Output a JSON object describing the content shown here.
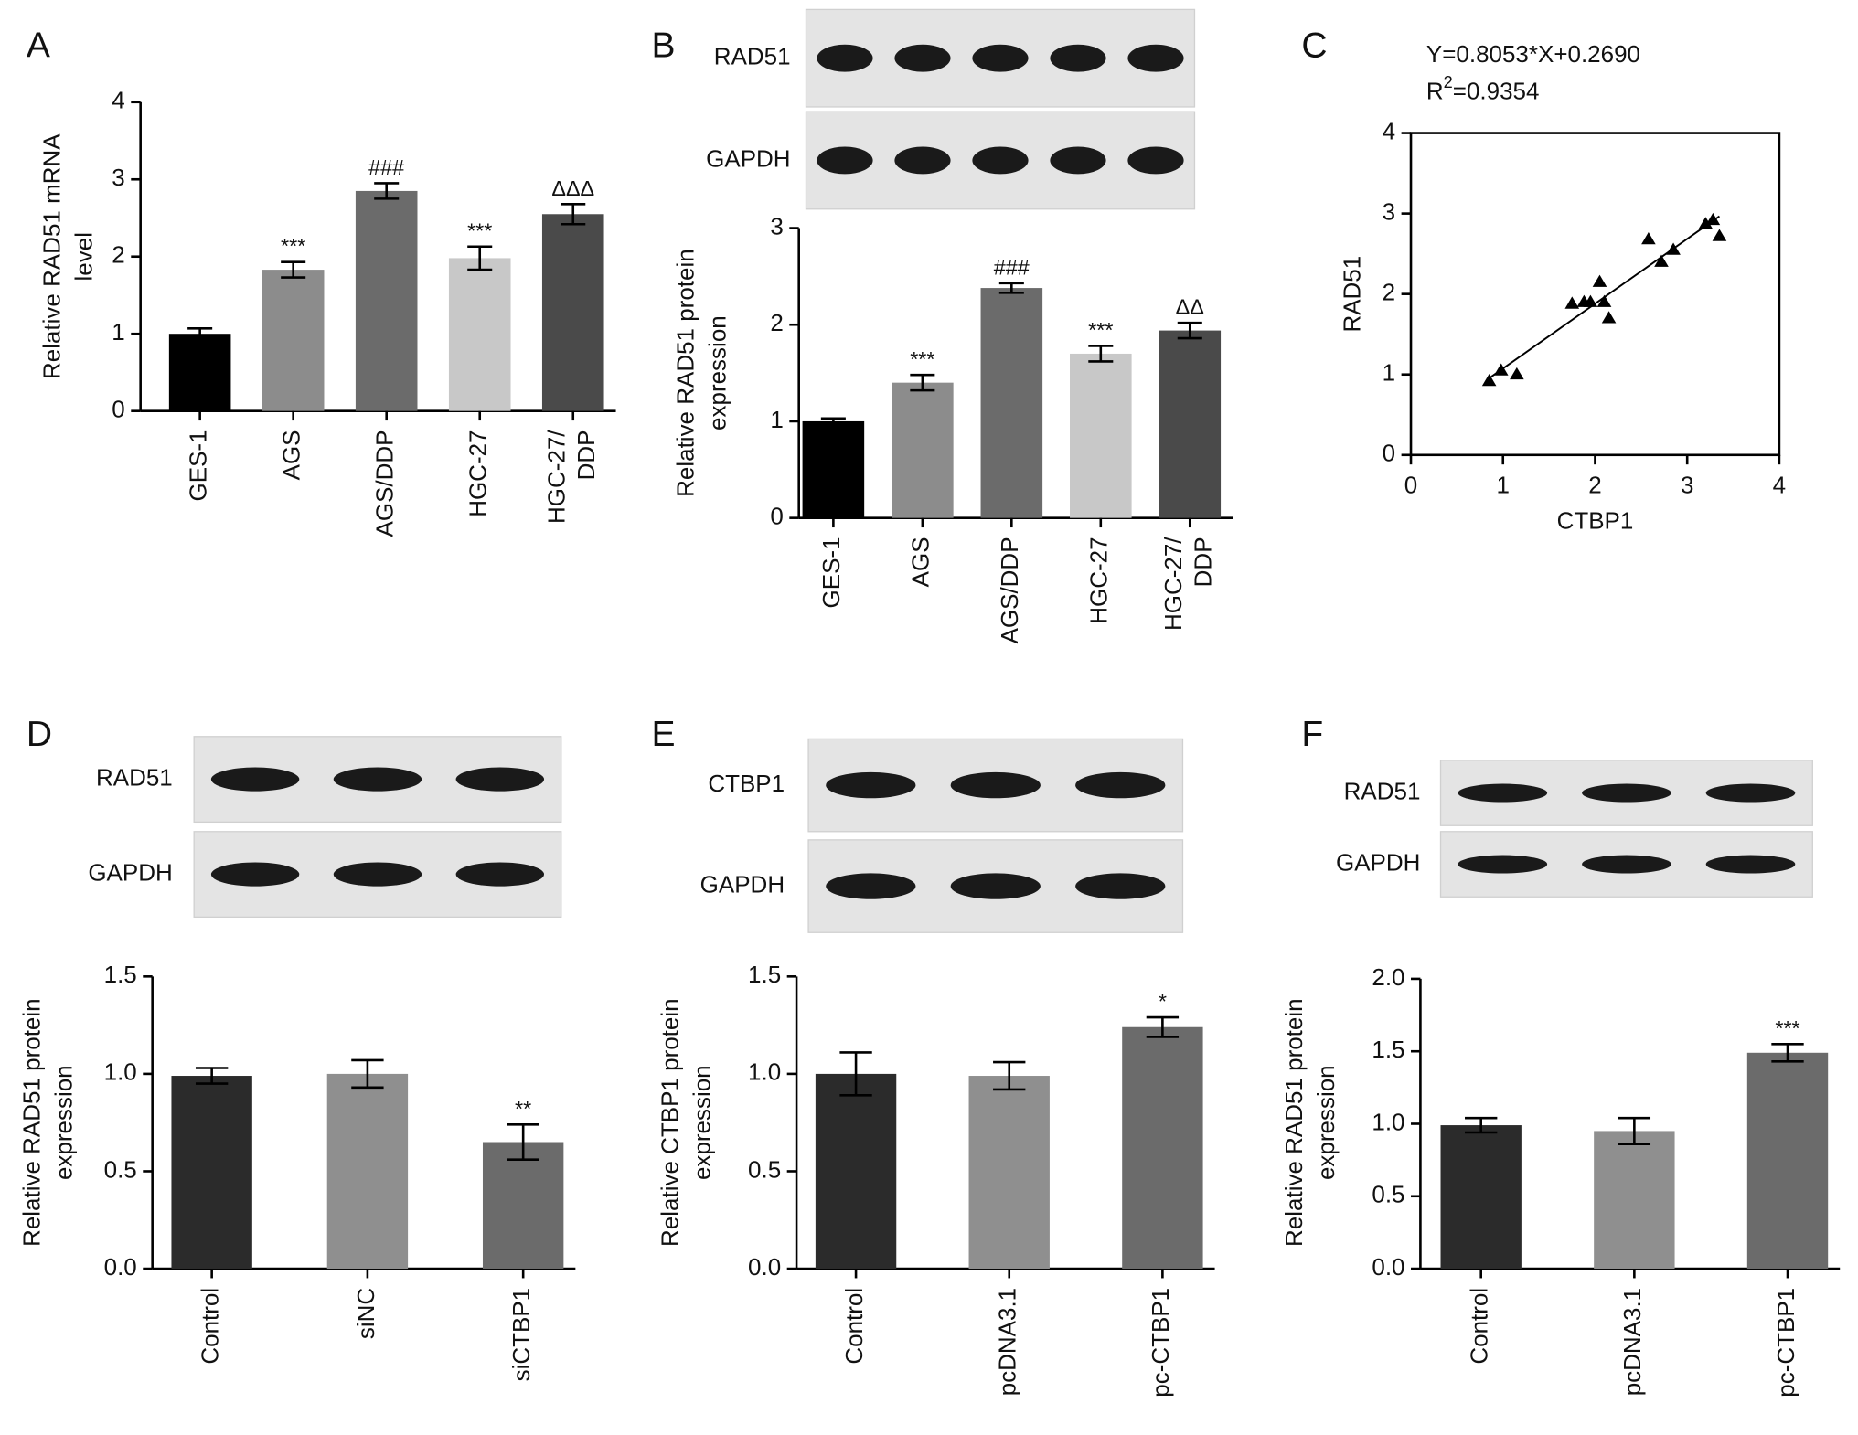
{
  "chart_data": [
    {
      "type": "bar",
      "panel_label": "A",
      "ylabel": [
        "Relative RAD51 mRNA",
        "level"
      ],
      "categories": [
        "GES-1",
        "AGS",
        "AGS/DDP",
        "HGC-27",
        [
          "HGC-27/",
          "DDP"
        ]
      ],
      "values": [
        1.0,
        1.83,
        2.85,
        1.98,
        2.55
      ],
      "errors": [
        0.07,
        0.1,
        0.1,
        0.15,
        0.13
      ],
      "annotations": [
        null,
        "***",
        "###",
        "***",
        "ΔΔΔ"
      ],
      "colors": [
        "#000000",
        "#8c8c8c",
        "#6b6b6b",
        "#c8c8c8",
        "#4a4a4a"
      ],
      "ylim": [
        0,
        4
      ],
      "yticks": [
        0,
        1,
        2,
        3,
        4
      ]
    },
    {
      "type": "bar",
      "panel_label": "B",
      "blot_labels": [
        "RAD51",
        "GAPDH"
      ],
      "ylabel": [
        "Relative RAD51 protein",
        "expression"
      ],
      "categories": [
        "GES-1",
        "AGS",
        "AGS/DDP",
        "HGC-27",
        [
          "HGC-27/",
          "DDP"
        ]
      ],
      "values": [
        1.0,
        1.4,
        2.38,
        1.7,
        1.94
      ],
      "errors": [
        0.03,
        0.08,
        0.05,
        0.08,
        0.08
      ],
      "annotations": [
        null,
        "***",
        "###",
        "***",
        "ΔΔ"
      ],
      "colors": [
        "#000000",
        "#8c8c8c",
        "#6b6b6b",
        "#c8c8c8",
        "#4a4a4a"
      ],
      "ylim": [
        0,
        3
      ],
      "yticks": [
        0,
        1,
        2,
        3
      ]
    },
    {
      "type": "scatter",
      "panel_label": "C",
      "equation": "Y=0.8053*X+0.2690",
      "r2": {
        "base": "R",
        "sup": "2",
        "rest": "=0.9354"
      },
      "fit": {
        "slope": 0.8053,
        "intercept": 0.269
      },
      "xlabel": "CTBP1",
      "ylabel": "RAD51",
      "color": "#000000",
      "x": [
        0.85,
        0.98,
        1.15,
        1.75,
        1.88,
        1.95,
        2.05,
        2.1,
        2.15,
        2.58,
        2.72,
        2.85,
        3.2,
        3.28,
        3.35
      ],
      "y": [
        0.92,
        1.05,
        1.0,
        1.88,
        1.9,
        1.9,
        2.15,
        1.9,
        1.7,
        2.68,
        2.4,
        2.55,
        2.87,
        2.92,
        2.72
      ],
      "xlim": [
        0,
        4
      ],
      "ylim": [
        0,
        4
      ],
      "xticks": [
        0,
        1,
        2,
        3,
        4
      ],
      "yticks": [
        0,
        1,
        2,
        3,
        4
      ]
    },
    {
      "type": "bar",
      "panel_label": "D",
      "blot_labels": [
        "RAD51",
        "GAPDH"
      ],
      "ylabel": [
        "Relative RAD51 protein",
        "expression"
      ],
      "categories": [
        "Control",
        "siNC",
        "siCTBP1"
      ],
      "values": [
        0.99,
        1.0,
        0.65
      ],
      "errors": [
        0.04,
        0.07,
        0.09
      ],
      "annotations": [
        null,
        null,
        "**"
      ],
      "colors": [
        "#2b2b2b",
        "#8f8f8f",
        "#6b6b6b"
      ],
      "ylim": [
        0,
        1.5
      ],
      "yticks": [
        {
          "value": 0,
          "label": "0.0"
        },
        {
          "value": 0.5,
          "label": "0.5"
        },
        {
          "value": 1,
          "label": "1.0"
        },
        {
          "value": 1.5,
          "label": "1.5"
        }
      ]
    },
    {
      "type": "bar",
      "panel_label": "E",
      "blot_labels": [
        "CTBP1",
        "GAPDH"
      ],
      "ylabel": [
        "Relative CTBP1 protein",
        "expression"
      ],
      "categories": [
        "Control",
        "pcDNA3.1",
        "pc-CTBP1"
      ],
      "values": [
        1.0,
        0.99,
        1.24
      ],
      "errors": [
        0.11,
        0.07,
        0.05
      ],
      "annotations": [
        null,
        null,
        "*"
      ],
      "colors": [
        "#2b2b2b",
        "#8f8f8f",
        "#6b6b6b"
      ],
      "ylim": [
        0,
        1.5
      ],
      "yticks": [
        {
          "value": 0,
          "label": "0.0"
        },
        {
          "value": 0.5,
          "label": "0.5"
        },
        {
          "value": 1,
          "label": "1.0"
        },
        {
          "value": 1.5,
          "label": "1.5"
        }
      ]
    },
    {
      "type": "bar",
      "panel_label": "F",
      "blot_labels": [
        "RAD51",
        "GAPDH"
      ],
      "ylabel": [
        "Relative RAD51 protein",
        "expression"
      ],
      "categories": [
        "Control",
        "pcDNA3.1",
        "pc-CTBP1"
      ],
      "values": [
        0.99,
        0.95,
        1.49
      ],
      "errors": [
        0.05,
        0.09,
        0.06
      ],
      "annotations": [
        null,
        null,
        "***"
      ],
      "colors": [
        "#2b2b2b",
        "#8f8f8f",
        "#6b6b6b"
      ],
      "ylim": [
        0,
        2
      ],
      "yticks": [
        {
          "value": 0,
          "label": "0.0"
        },
        {
          "value": 0.5,
          "label": "0.5"
        },
        {
          "value": 1,
          "label": "1.0"
        },
        {
          "value": 1.5,
          "label": "1.5"
        },
        {
          "value": 2,
          "label": "2.0"
        }
      ]
    }
  ]
}
